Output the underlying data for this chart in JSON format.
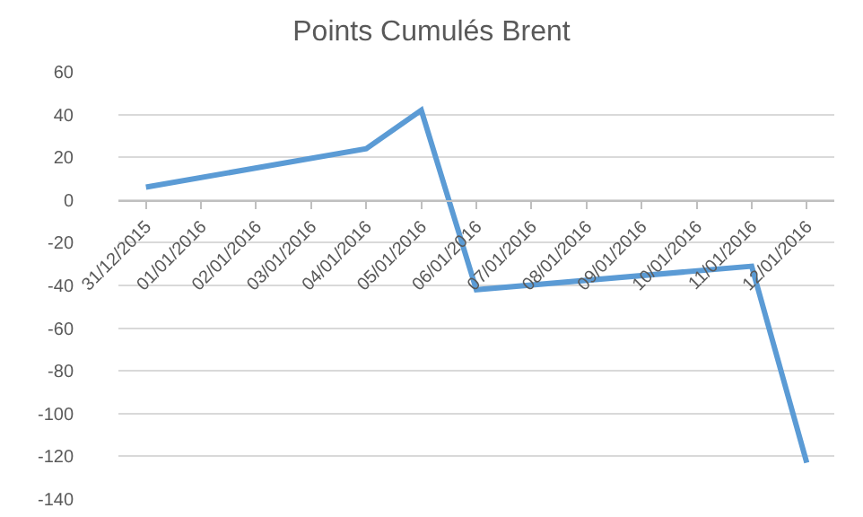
{
  "chart_data": {
    "type": "line",
    "title": "Points Cumulés Brent",
    "x": [
      "2015-12-31",
      "2016-01-04",
      "2016-01-05",
      "2016-01-06",
      "2016-01-11",
      "2016-01-12"
    ],
    "series": [
      {
        "color": "#5b9bd5",
        "values": [
          6,
          24,
          42,
          -42,
          -31,
          -123
        ]
      }
    ],
    "xlim": [
      "2015-12-30T12:00",
      "2016-01-12T12:00"
    ],
    "xticks": [
      {
        "value": "2015-12-31",
        "label": "31/12/2015"
      },
      {
        "value": "2016-01-01",
        "label": "01/01/2016"
      },
      {
        "value": "2016-01-02",
        "label": "02/01/2016"
      },
      {
        "value": "2016-01-03",
        "label": "03/01/2016"
      },
      {
        "value": "2016-01-04",
        "label": "04/01/2016"
      },
      {
        "value": "2016-01-05",
        "label": "05/01/2016"
      },
      {
        "value": "2016-01-06",
        "label": "06/01/2016"
      },
      {
        "value": "2016-01-07",
        "label": "07/01/2016"
      },
      {
        "value": "2016-01-08",
        "label": "08/01/2016"
      },
      {
        "value": "2016-01-09",
        "label": "09/01/2016"
      },
      {
        "value": "2016-01-10",
        "label": "10/01/2016"
      },
      {
        "value": "2016-01-11",
        "label": "11/01/2016"
      },
      {
        "value": "2016-01-12",
        "label": "12/01/2016"
      }
    ],
    "ylim": [
      -140,
      60
    ],
    "yticks": [
      -140,
      -120,
      -100,
      -80,
      -60,
      -40,
      -20,
      0,
      20,
      40,
      60
    ],
    "grid": "y",
    "marker": "none",
    "line_style": "solid"
  }
}
